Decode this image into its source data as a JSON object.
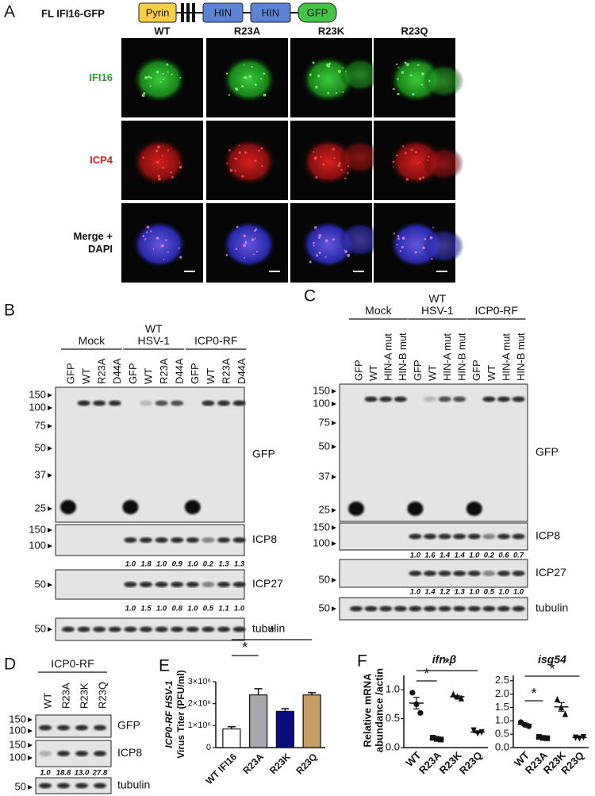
{
  "panel_a": {
    "letter": "A",
    "construct": "FL IFI16-GFP",
    "domains": [
      "Pyrin",
      "HIN",
      "HIN",
      "GFP"
    ],
    "columns": [
      "WT",
      "R23A",
      "R23K",
      "R23Q"
    ],
    "rows": [
      "IFI16",
      "ICP4",
      "Merge +\nDAPI"
    ]
  },
  "panel_b": {
    "letter": "B",
    "groups": [
      "Mock",
      "WT\nHSV-1",
      "ICP0-RF"
    ],
    "lanes": [
      "GFP",
      "WT",
      "R23A",
      "D44A",
      "GFP",
      "WT",
      "R23A",
      "D44A",
      "GFP",
      "WT",
      "R23A",
      "D44A"
    ],
    "blots": [
      {
        "label": "GFP",
        "markers": [
          "150",
          "100",
          "75",
          "50",
          "37",
          "25"
        ]
      },
      {
        "label": "ICP8",
        "markers": [
          "150",
          "100"
        ],
        "quant": [
          "1.0",
          "1.8",
          "1.0",
          "0.9",
          "1.0",
          "0.2",
          "1.3",
          "1.3"
        ]
      },
      {
        "label": "ICP27",
        "markers": [
          "50"
        ],
        "quant": [
          "1.0",
          "1.5",
          "1.0",
          "0.8",
          "1.0",
          "0.5",
          "1.1",
          "1.0"
        ]
      },
      {
        "label": "tubulin",
        "markers": [
          "50"
        ]
      }
    ]
  },
  "panel_c": {
    "letter": "C",
    "groups": [
      "Mock",
      "WT\nHSV-1",
      "ICP0-RF"
    ],
    "lanes": [
      "GFP",
      "WT",
      "HIN-A mut",
      "HIN-B mut",
      "GFP",
      "WT",
      "HIN-A mut",
      "HIN-B mut",
      "GFP",
      "WT",
      "HIN-A mut",
      "HIN-B mut"
    ],
    "blots": [
      {
        "label": "GFP",
        "markers": [
          "150",
          "100",
          "75",
          "50",
          "37",
          "25"
        ]
      },
      {
        "label": "ICP8",
        "markers": [
          "150",
          "100"
        ],
        "quant": [
          "1.0",
          "1.6",
          "1.4",
          "1.4",
          "1.0",
          "0.2",
          "0.6",
          "0.7"
        ]
      },
      {
        "label": "ICP27",
        "markers": [
          "50"
        ],
        "quant": [
          "1.0",
          "1.4",
          "1.2",
          "1.3",
          "1.0",
          "0.5",
          "1.0",
          "1.0"
        ]
      },
      {
        "label": "tubulin",
        "markers": [
          "50"
        ]
      }
    ]
  },
  "panel_d": {
    "letter": "D",
    "groups": [
      "ICP0-RF"
    ],
    "lanes": [
      "WT",
      "R23A",
      "R23K",
      "R23Q"
    ],
    "blots": [
      {
        "label": "GFP",
        "markers": [
          "150",
          "100"
        ]
      },
      {
        "label": "ICP8",
        "markers": [
          "150",
          "100"
        ],
        "quant": [
          "1.0",
          "18.8",
          "13.0",
          "27.8"
        ]
      },
      {
        "label": "tubulin",
        "markers": [
          "50"
        ]
      }
    ]
  },
  "panel_e": {
    "letter": "E",
    "chart_data": {
      "type": "bar",
      "y_label": [
        "ICP0-RF HSV-1",
        "Virus Titer (PFU/ml)"
      ],
      "categories": [
        "WT IFI16",
        "R23A",
        "R23K",
        "R23Q"
      ],
      "values": [
        850000,
        2400000,
        1650000,
        2400000
      ],
      "errors": [
        100000,
        280000,
        120000,
        100000
      ],
      "colors": [
        "#ffffff",
        "#a7a7ad",
        "#0b0b80",
        "#c59e63"
      ],
      "ylim": [
        0,
        3000000
      ],
      "yticks": [
        0,
        {
          "value": 1000000,
          "label": "1×10⁶"
        },
        {
          "value": 2000000,
          "label": "2×10⁶"
        },
        {
          "value": 3000000,
          "label": "3×10⁶"
        }
      ],
      "annotations": [
        "*",
        "*"
      ]
    }
  },
  "panel_f": {
    "letter": "F",
    "y_label": [
      "Relative mRNA",
      "abundance /actin"
    ],
    "chart_data": [
      {
        "type": "dot",
        "title": "ifn-β",
        "categories": [
          "WT",
          "R23A",
          "R23K",
          "R23Q"
        ],
        "points": [
          [
            0.95,
            0.75,
            0.6
          ],
          [
            0.17,
            0.15,
            0.14
          ],
          [
            0.92,
            0.88,
            0.85
          ],
          [
            0.3,
            0.25,
            0.27
          ]
        ],
        "means": [
          0.77,
          0.15,
          0.88,
          0.27
        ],
        "errors": [
          0.1,
          0.01,
          0.02,
          0.015
        ],
        "ylim": [
          0,
          1.25
        ],
        "yticks": [
          {
            "value": 0,
            "label": "0.0"
          },
          0.5,
          {
            "value": 1,
            "label": "1.0"
          }
        ],
        "annotations": [
          "*",
          "*"
        ]
      },
      {
        "type": "dot",
        "title": "isg54",
        "categories": [
          "WT",
          "R23A",
          "R23K",
          "R23Q"
        ],
        "points": [
          [
            0.95,
            0.85,
            0.8
          ],
          [
            0.4,
            0.36,
            0.35
          ],
          [
            1.8,
            1.5,
            1.25
          ],
          [
            0.38,
            0.35,
            0.4
          ]
        ],
        "means": [
          0.87,
          0.37,
          1.52,
          0.38
        ],
        "errors": [
          0.05,
          0.02,
          0.16,
          0.015
        ],
        "ylim": [
          0,
          2.7
        ],
        "yticks": [
          {
            "value": 0,
            "label": "0.0"
          },
          0.5,
          {
            "value": 1,
            "label": "1.0"
          },
          1.5,
          {
            "value": 2,
            "label": "2.0"
          },
          2.5
        ],
        "annotations": [
          "*",
          "*"
        ]
      }
    ]
  }
}
